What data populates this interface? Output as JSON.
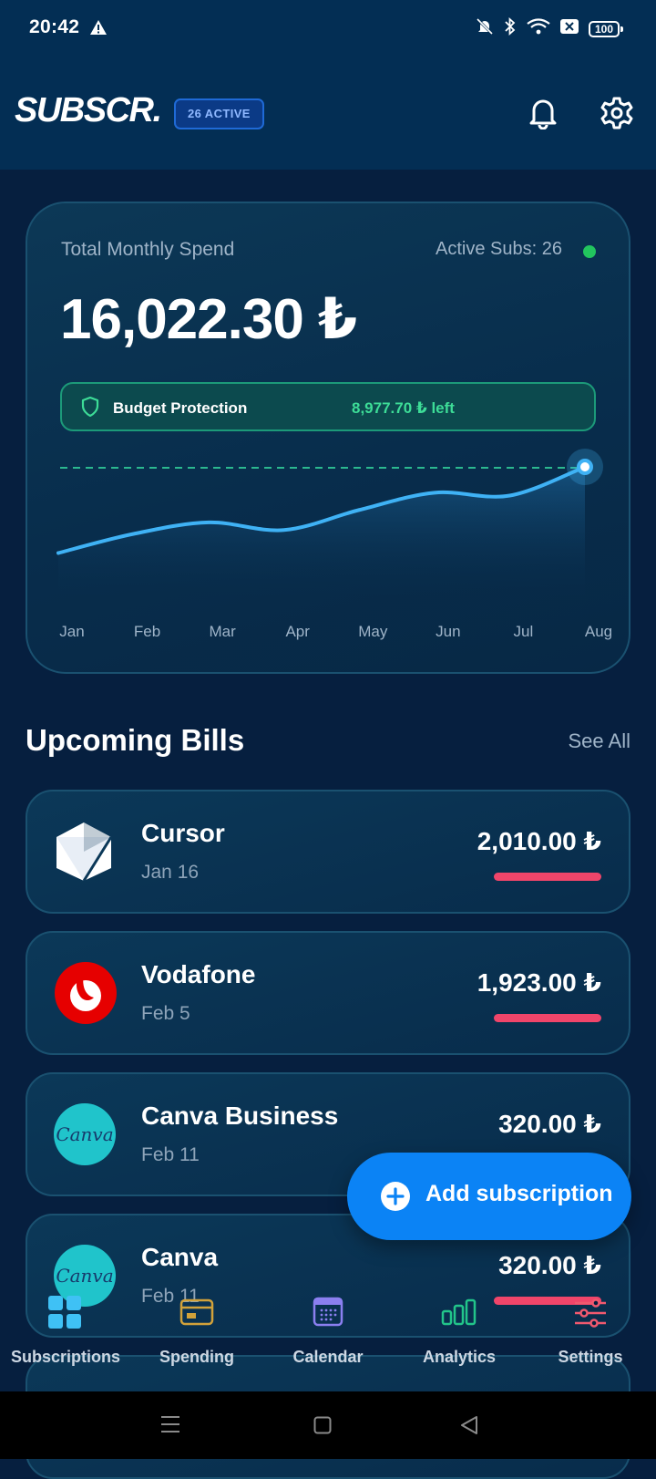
{
  "status_bar": {
    "time": "20:42",
    "battery": "100"
  },
  "header": {
    "logo": "SUBSCR.",
    "active_badge": "26 ACTIVE"
  },
  "summary": {
    "total_label": "Total Monthly Spend",
    "active_label": "Active Subs: 26",
    "total": "16,022.30 ₺",
    "budget_label": "Budget Protection",
    "budget_left": "8,977.70 ₺ left"
  },
  "chart_data": {
    "type": "line",
    "categories": [
      "Jan",
      "Feb",
      "Mar",
      "Apr",
      "May",
      "Jun",
      "Jul",
      "Aug"
    ],
    "series": [
      {
        "values": [
          0.1,
          0.3,
          0.42,
          0.34,
          0.55,
          0.73,
          0.7,
          1.0
        ]
      }
    ],
    "threshold_line": true,
    "grid": false,
    "colors": {
      "line": "#3fb2f5",
      "threshold": "#2bb88f"
    }
  },
  "upcoming": {
    "title": "Upcoming Bills",
    "see_all": "See All",
    "bills": [
      {
        "name": "Cursor",
        "date": "Jan 16",
        "amount": "2,010.00 ₺",
        "icon": "cursor-logo"
      },
      {
        "name": "Vodafone",
        "date": "Feb 5",
        "amount": "1,923.00 ₺",
        "icon": "vodafone-logo"
      },
      {
        "name": "Canva Business",
        "date": "Feb 11",
        "amount": "320.00 ₺",
        "icon": "canva-logo",
        "logo_text": "Canva"
      },
      {
        "name": "Canva",
        "date": "Feb 11",
        "amount": "320.00 ₺",
        "icon": "canva-logo",
        "logo_text": "Canva"
      }
    ]
  },
  "fab": {
    "label": "Add subscription"
  },
  "nav": [
    {
      "label": "Subscriptions",
      "icon": "grid-icon",
      "color": "#3fc1f5"
    },
    {
      "label": "Spending",
      "icon": "card-icon",
      "color": "#d2a23a"
    },
    {
      "label": "Calendar",
      "icon": "calendar-icon",
      "color": "#8b7ff0"
    },
    {
      "label": "Analytics",
      "icon": "bar-chart-icon",
      "color": "#22c58a"
    },
    {
      "label": "Settings",
      "icon": "sliders-icon",
      "color": "#f0596f"
    }
  ]
}
